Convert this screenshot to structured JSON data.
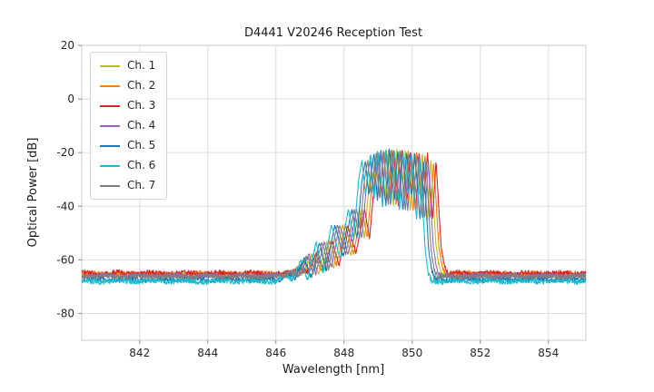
{
  "figure": {
    "title": "D4441 V20246 Reception Test",
    "xlabel": "Wavelength [nm]",
    "ylabel": "Optical Power [dB]"
  },
  "chart_data": {
    "type": "line",
    "title": "D4441 V20246 Reception Test",
    "xlabel": "Wavelength [nm]",
    "ylabel": "Optical Power [dB]",
    "xlim": [
      840.3,
      855.1
    ],
    "ylim": [
      -90,
      20
    ],
    "xticks": [
      842,
      844,
      846,
      848,
      850,
      852,
      854
    ],
    "yticks": [
      20,
      0,
      -20,
      -40,
      -60,
      -80
    ],
    "grid": true,
    "legend_position": "upper-left",
    "profile_note": "shared spectral envelope keypoints [nm, dB]; each channel is this profile shifted by wavelength_shift_nm with its own baseline_db noise floor",
    "profile_baseline_db": -65.5,
    "profile": [
      [
        840.3,
        -65.5
      ],
      [
        846.2,
        -65.5
      ],
      [
        846.5,
        -63.5
      ],
      [
        846.7,
        -65.2
      ],
      [
        846.95,
        -58.0
      ],
      [
        847.15,
        -64.5
      ],
      [
        847.4,
        -53.0
      ],
      [
        847.6,
        -62.5
      ],
      [
        847.85,
        -47.0
      ],
      [
        848.1,
        -58.0
      ],
      [
        848.35,
        -41.0
      ],
      [
        848.5,
        -52.0
      ],
      [
        848.65,
        -30.0
      ],
      [
        848.75,
        -23.0
      ],
      [
        848.85,
        -36.0
      ],
      [
        849.0,
        -20.0
      ],
      [
        849.1,
        -38.0
      ],
      [
        849.2,
        -19.0
      ],
      [
        849.35,
        -40.0
      ],
      [
        849.45,
        -18.5
      ],
      [
        849.6,
        -38.0
      ],
      [
        849.7,
        -19.0
      ],
      [
        849.85,
        -42.0
      ],
      [
        849.95,
        -20.0
      ],
      [
        850.1,
        -36.0
      ],
      [
        850.2,
        -20.5
      ],
      [
        850.35,
        -45.0
      ],
      [
        850.45,
        -23.0
      ],
      [
        850.6,
        -55.0
      ],
      [
        850.7,
        -63.0
      ],
      [
        850.8,
        -65.5
      ],
      [
        855.1,
        -65.5
      ]
    ],
    "series": [
      {
        "name": "Ch. 1",
        "color": "#bcbd22",
        "wavelength_shift_nm": 0.1,
        "baseline_db": -65.8
      },
      {
        "name": "Ch. 2",
        "color": "#ff7f0e",
        "wavelength_shift_nm": 0.18,
        "baseline_db": -65.2
      },
      {
        "name": "Ch. 3",
        "color": "#d62728",
        "wavelength_shift_nm": 0.25,
        "baseline_db": -65.0
      },
      {
        "name": "Ch. 4",
        "color": "#9467bd",
        "wavelength_shift_nm": 0.02,
        "baseline_db": -66.0
      },
      {
        "name": "Ch. 5",
        "color": "#1f77b4",
        "wavelength_shift_nm": -0.12,
        "baseline_db": -67.3
      },
      {
        "name": "Ch. 6",
        "color": "#17becf",
        "wavelength_shift_nm": -0.22,
        "baseline_db": -68.0
      },
      {
        "name": "Ch. 7",
        "color": "#7f7f7f",
        "wavelength_shift_nm": -0.05,
        "baseline_db": -66.2
      }
    ]
  }
}
